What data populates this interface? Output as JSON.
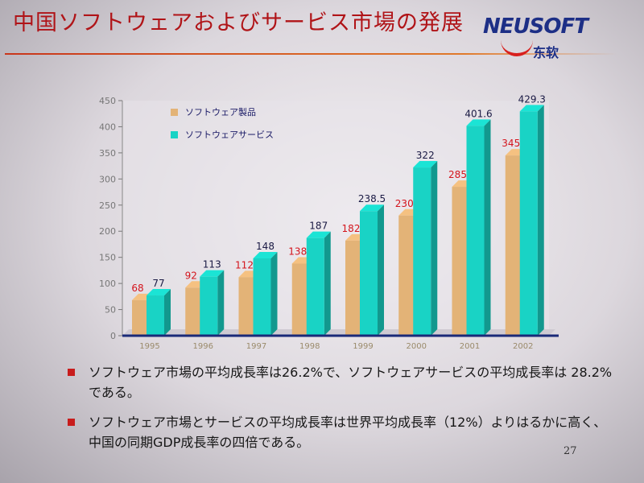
{
  "slide": {
    "title": "中国ソフトウェアおよびサービス市場の発展",
    "page_number": "27",
    "logo": {
      "name": "NEUSOFT",
      "sub": "东软"
    },
    "colors": {
      "title": "#b01418",
      "product": "#e3b377",
      "service": "#19d3c5",
      "bullet": "#c81c1c"
    }
  },
  "bullets": [
    "ソフトウェア市場の平均成長率は26.2%で、ソフトウェアサービスの平均成長率は 28.2%である。",
    "ソフトウェア市場とサービスの平均成長率は世界平均成長率（12%）よりはるかに高く、中国の同期GDP成長率の四倍である。"
  ],
  "chart_data": {
    "type": "bar",
    "categories": [
      "1995",
      "1996",
      "1997",
      "1998",
      "1999",
      "2000",
      "2001",
      "2002"
    ],
    "series": [
      {
        "name": "ソフトウェア製品",
        "values": [
          68,
          92,
          112,
          138,
          182,
          230,
          285,
          345
        ],
        "color": "#e3b377",
        "label_color": "#d4141c"
      },
      {
        "name": "ソフトウェアサービス",
        "values": [
          77,
          113,
          148,
          187,
          238.5,
          322,
          401.6,
          429.3
        ],
        "color": "#19d3c5",
        "label_color": "#1a1a44"
      }
    ],
    "value_labels": [
      [
        "68",
        "92",
        "112",
        "138",
        "182",
        "230",
        "285",
        "345"
      ],
      [
        "77",
        "113",
        "148",
        "187",
        "238.5",
        "322",
        "401.6",
        "429.3"
      ]
    ],
    "ylim": [
      0,
      450
    ],
    "yticks": [
      "0",
      "50",
      "100",
      "150",
      "200",
      "250",
      "300",
      "350",
      "400",
      "450"
    ],
    "grid": false,
    "legend_position": "top-left"
  }
}
